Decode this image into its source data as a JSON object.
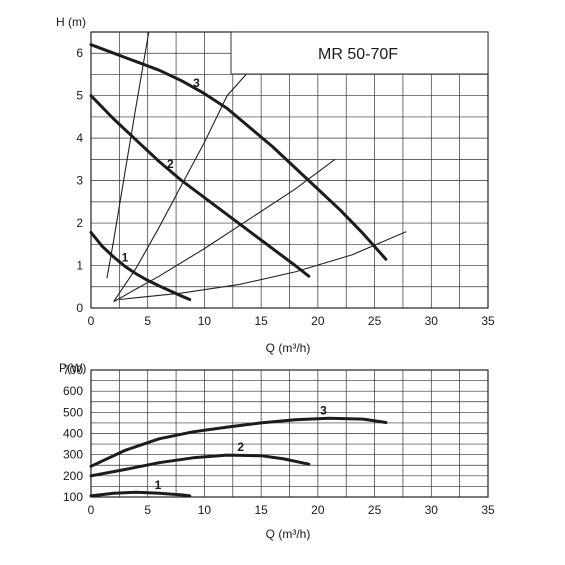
{
  "chart_data": [
    {
      "type": "line",
      "title": "MR 50-70F",
      "ylabel": "H (m)",
      "xlabel": "Q (m³/h)",
      "xlim": [
        0,
        35
      ],
      "ylim": [
        0,
        6.5
      ],
      "x_ticks": [
        "0",
        "5",
        "10",
        "15",
        "20",
        "25",
        "30",
        "35"
      ],
      "y_ticks": [
        "0",
        "1",
        "2",
        "3",
        "4",
        "5",
        "6"
      ],
      "grid": true,
      "series": [
        {
          "name": "1",
          "x": [
            0,
            1,
            2,
            3,
            4,
            5,
            6,
            7,
            8,
            8.7
          ],
          "y": [
            1.78,
            1.45,
            1.2,
            0.98,
            0.8,
            0.65,
            0.52,
            0.4,
            0.28,
            0.2
          ]
        },
        {
          "name": "2",
          "x": [
            0,
            2,
            4,
            6,
            8,
            10,
            12,
            14,
            16,
            18,
            19.2
          ],
          "y": [
            5.0,
            4.45,
            3.95,
            3.45,
            3.0,
            2.6,
            2.2,
            1.8,
            1.4,
            1.0,
            0.75
          ]
        },
        {
          "name": "3",
          "x": [
            0,
            2,
            4,
            6,
            8,
            10,
            12,
            14,
            16,
            18,
            20,
            22,
            24,
            26
          ],
          "y": [
            6.2,
            6.0,
            5.8,
            5.6,
            5.35,
            5.05,
            4.7,
            4.25,
            3.8,
            3.3,
            2.8,
            2.3,
            1.75,
            1.15
          ]
        }
      ],
      "system_curves": [
        {
          "x": [
            1.4,
            2,
            3,
            4,
            5.1
          ],
          "y": [
            0.7,
            1.6,
            3.2,
            4.8,
            6.5
          ]
        },
        {
          "x": [
            2,
            4,
            6,
            8,
            10,
            12,
            14
          ],
          "y": [
            0.15,
            0.95,
            1.9,
            2.9,
            3.9,
            5.0,
            5.6
          ]
        },
        {
          "x": [
            2,
            6,
            10,
            14,
            18,
            21.5
          ],
          "y": [
            0.15,
            0.75,
            1.4,
            2.1,
            2.8,
            3.5
          ]
        },
        {
          "x": [
            2.5,
            8,
            13,
            18,
            23,
            27.8
          ],
          "y": [
            0.2,
            0.35,
            0.55,
            0.85,
            1.25,
            1.8
          ]
        }
      ],
      "labels": [
        {
          "text": "1",
          "x": 3,
          "y": 1.1
        },
        {
          "text": "2",
          "x": 7,
          "y": 3.3
        },
        {
          "text": "3",
          "x": 9.3,
          "y": 5.2
        }
      ]
    },
    {
      "type": "line",
      "ylabel": "P(W)",
      "xlabel": "Q (m³/h)",
      "xlim": [
        0,
        35
      ],
      "ylim": [
        100,
        700
      ],
      "x_ticks": [
        "0",
        "5",
        "10",
        "15",
        "20",
        "25",
        "30",
        "35"
      ],
      "y_ticks": [
        "100",
        "200",
        "300",
        "400",
        "500",
        "600",
        "700"
      ],
      "grid": true,
      "series": [
        {
          "name": "1",
          "x": [
            0,
            2,
            4,
            6,
            8,
            8.7
          ],
          "y": [
            105,
            118,
            122,
            118,
            110,
            105
          ]
        },
        {
          "name": "2",
          "x": [
            0,
            3,
            6,
            9,
            12,
            15,
            17,
            19.2
          ],
          "y": [
            200,
            230,
            262,
            285,
            298,
            295,
            280,
            255
          ]
        },
        {
          "name": "3",
          "x": [
            0,
            3,
            6,
            9,
            12,
            15,
            18,
            21,
            24,
            26
          ],
          "y": [
            245,
            320,
            375,
            408,
            430,
            450,
            465,
            472,
            468,
            452
          ]
        }
      ],
      "labels": [
        {
          "text": "1",
          "x": 5.9,
          "y": 138
        },
        {
          "text": "2",
          "x": 13.2,
          "y": 318
        },
        {
          "text": "3",
          "x": 20.5,
          "y": 490
        }
      ]
    }
  ]
}
